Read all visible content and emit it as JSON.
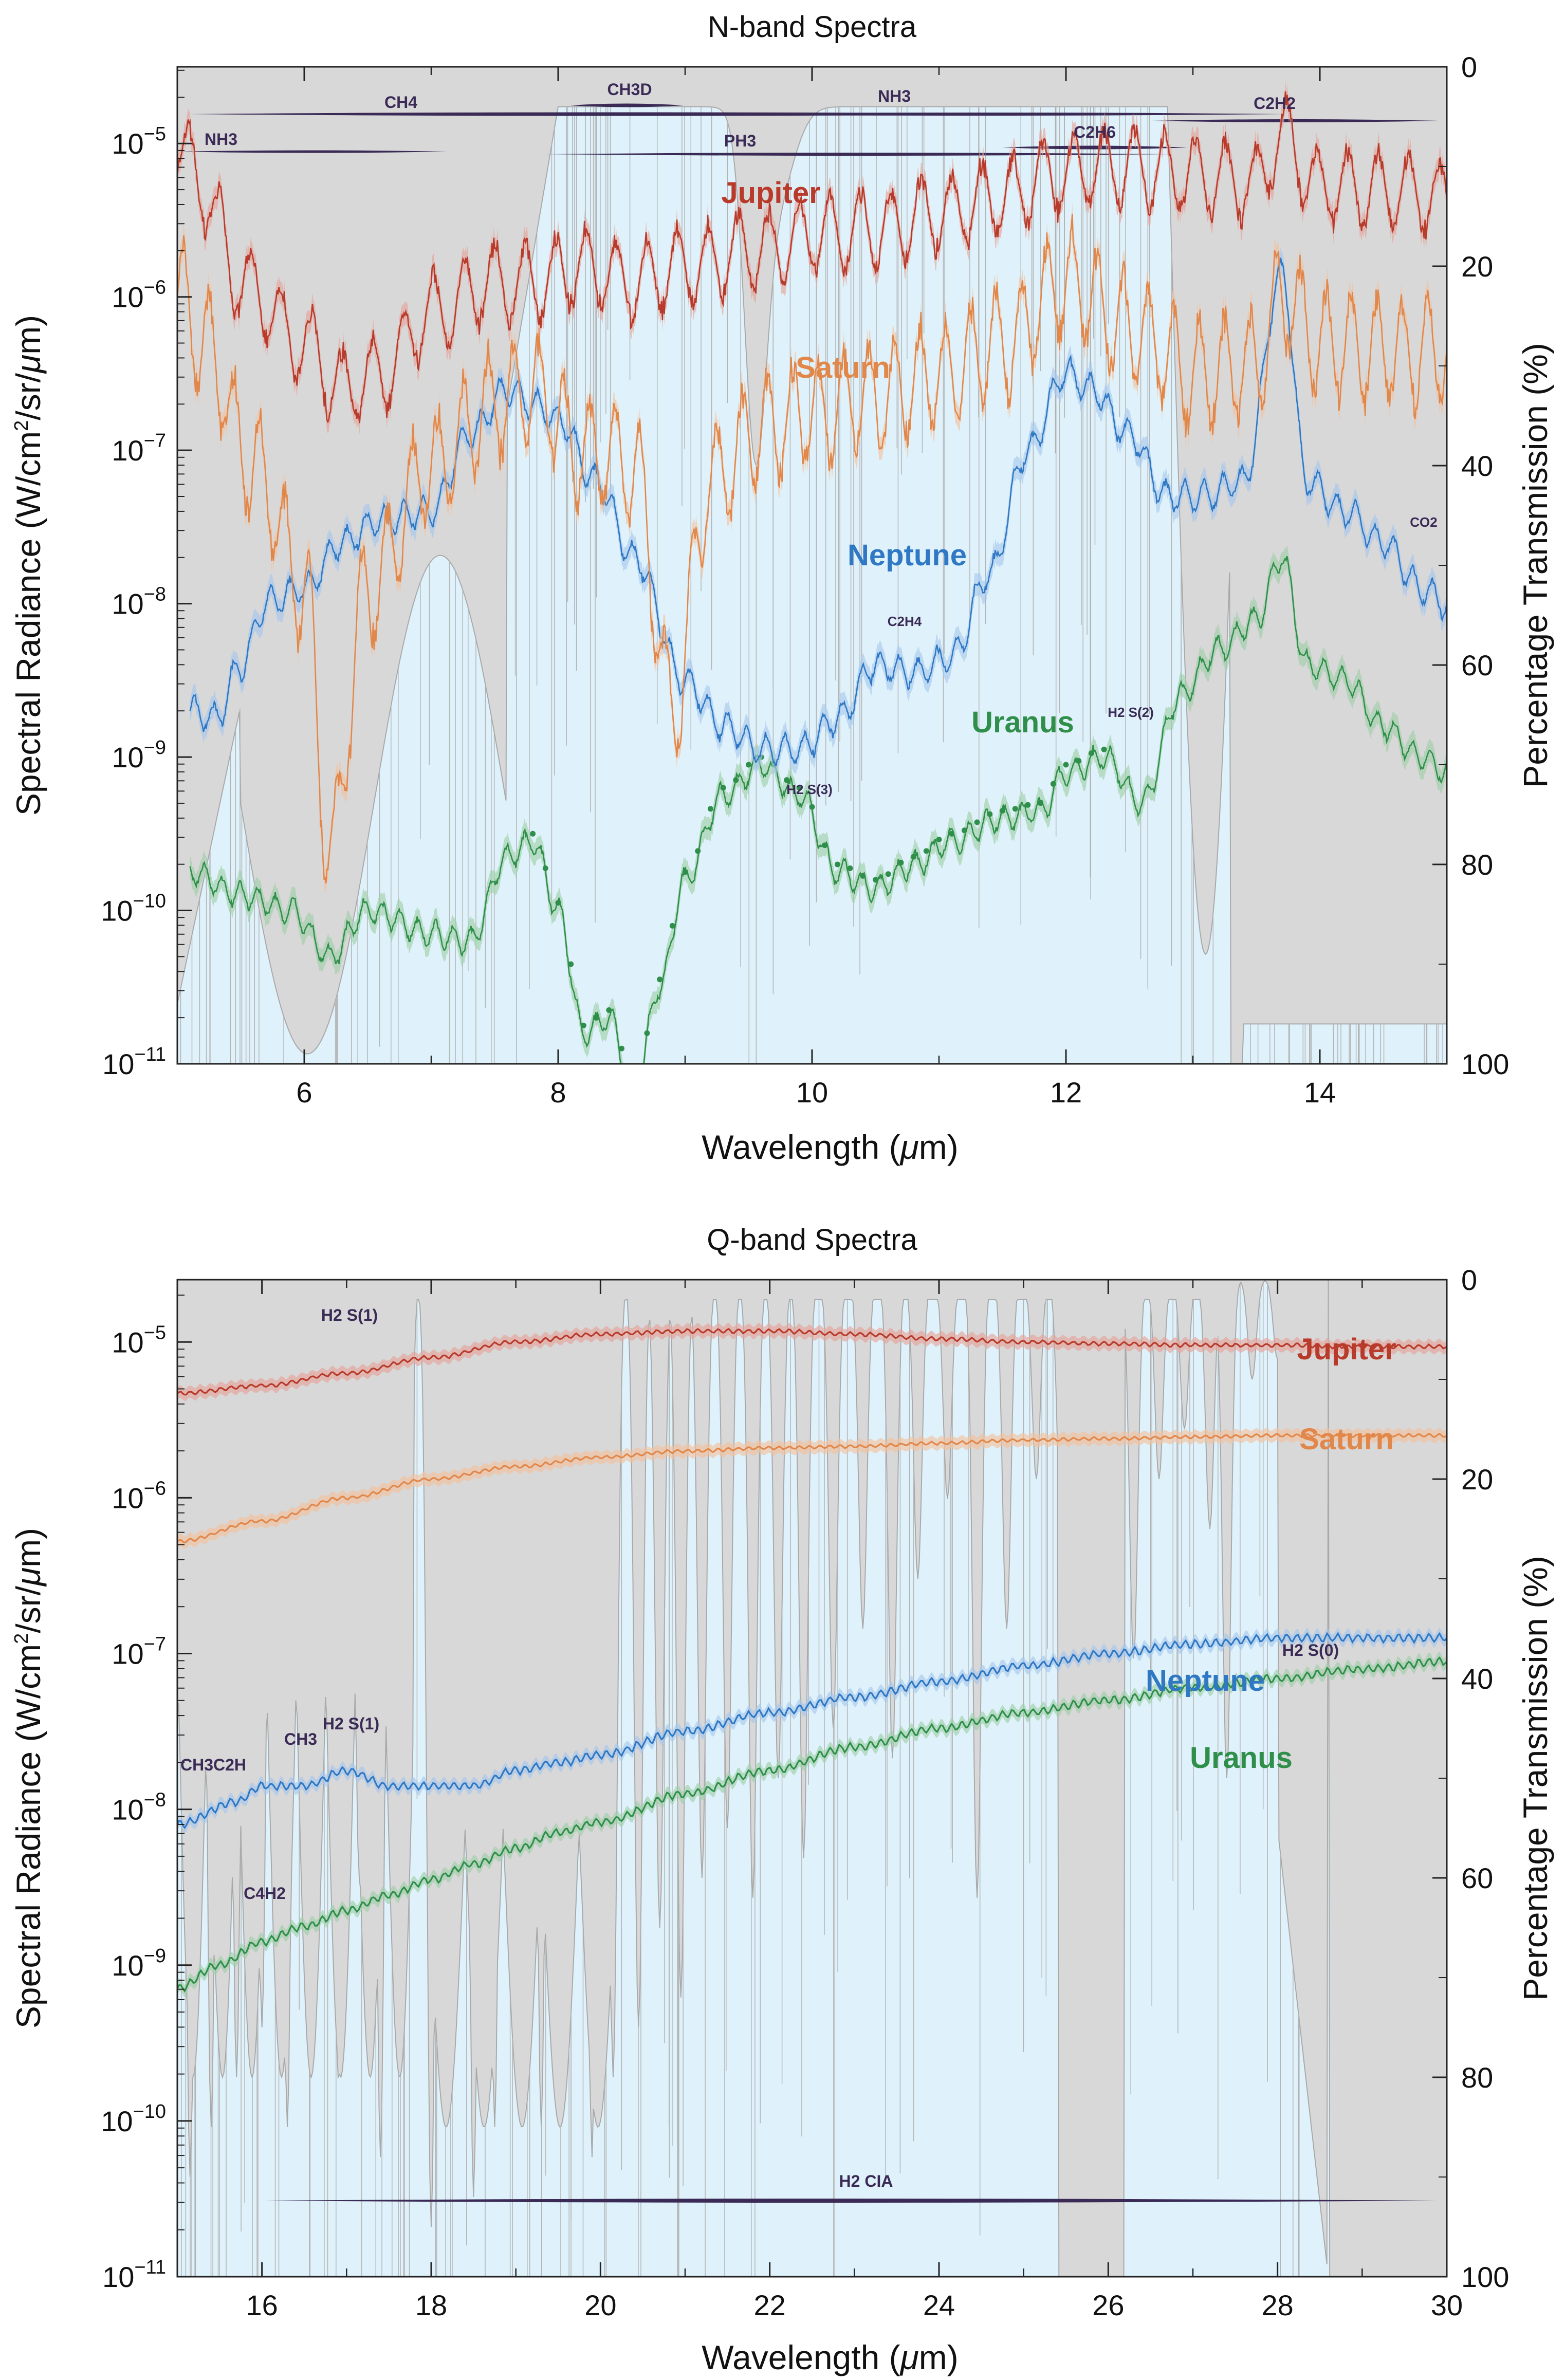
{
  "chart_data": [
    {
      "type": "line",
      "title": "N-band Spectra",
      "xlabel": "Wavelength (μm)",
      "ylabel": "Spectral Radiance (W/cm²/sr/μm)",
      "y2label": "Percentage Transmission (%)",
      "xlim": [
        5,
        15
      ],
      "ylim_log10": [
        -11,
        -4.5
      ],
      "y2lim": [
        100,
        0
      ],
      "x_ticks": [
        "6",
        "8",
        "10",
        "12",
        "14"
      ],
      "y_ticks": [
        "10-5",
        "10-6",
        "10-7",
        "10-8",
        "10-9",
        "10-10",
        "10-11"
      ],
      "y2_ticks": [
        "0",
        "20",
        "40",
        "60",
        "80",
        "100"
      ],
      "planet_colors": {
        "Jupiter": "#b83a2a",
        "Saturn": "#e2874a",
        "Neptune": "#2f78c4",
        "Uranus": "#2f8f4a"
      },
      "series": [
        {
          "name": "Jupiter",
          "x": [
            5.0,
            5.2,
            5.5,
            6.0,
            6.3,
            6.6,
            7.0,
            7.5,
            7.8,
            8.2,
            8.6,
            9.0,
            9.5,
            10.0,
            10.5,
            11.0,
            11.5,
            11.9,
            12.5,
            13.0,
            13.5,
            13.7,
            14.0,
            14.5,
            15.0
          ],
          "log10": [
            -5.0,
            -5.3,
            -5.9,
            -6.3,
            -6.6,
            -6.5,
            -6.1,
            -5.9,
            -5.9,
            -5.8,
            -5.9,
            -5.8,
            -5.7,
            -5.6,
            -5.55,
            -5.45,
            -5.35,
            -5.2,
            -5.15,
            -5.2,
            -5.25,
            -4.95,
            -5.28,
            -5.3,
            -5.35
          ]
        },
        {
          "name": "Saturn",
          "x": [
            5.0,
            5.2,
            5.6,
            6.0,
            6.2,
            6.5,
            7.0,
            7.5,
            7.8,
            8.2,
            8.6,
            8.9,
            9.2,
            9.6,
            10.0,
            10.5,
            11.0,
            11.5,
            12.0,
            12.5,
            13.0,
            13.5,
            13.7,
            14.0,
            14.5,
            15.0
          ],
          "log10": [
            -6.0,
            -6.3,
            -7.1,
            -7.9,
            -9.6,
            -7.9,
            -7.1,
            -6.7,
            -6.6,
            -7.0,
            -7.1,
            -8.7,
            -7.2,
            -6.85,
            -6.75,
            -6.65,
            -6.5,
            -6.3,
            -5.9,
            -6.2,
            -6.5,
            -6.45,
            -6.0,
            -6.3,
            -6.35,
            -6.35
          ]
        },
        {
          "name": "Neptune",
          "x": [
            5.1,
            5.3,
            5.5,
            5.7,
            6.0,
            6.3,
            6.6,
            7.0,
            7.3,
            7.6,
            7.8,
            8.0,
            8.3,
            8.6,
            9.0,
            9.3,
            9.6,
            9.9,
            10.2,
            10.5,
            10.8,
            11.1,
            11.4,
            11.7,
            12.0,
            12.2,
            12.5,
            12.8,
            13.1,
            13.4,
            13.7,
            13.9,
            14.2,
            14.5,
            14.8,
            15.0
          ],
          "log10": [
            -8.7,
            -8.75,
            -8.4,
            -8.0,
            -7.9,
            -7.6,
            -7.45,
            -7.4,
            -6.9,
            -6.6,
            -6.7,
            -6.8,
            -7.2,
            -7.7,
            -8.5,
            -8.8,
            -8.95,
            -8.95,
            -8.75,
            -8.4,
            -8.45,
            -8.35,
            -7.8,
            -7.0,
            -6.5,
            -6.6,
            -6.9,
            -7.3,
            -7.3,
            -7.2,
            -5.85,
            -7.2,
            -7.4,
            -7.6,
            -7.9,
            -8.0
          ]
        },
        {
          "name": "Uranus",
          "x": [
            5.1,
            5.5,
            5.9,
            6.2,
            6.5,
            7.0,
            7.3,
            7.6,
            7.8,
            8.0,
            8.2,
            8.4,
            8.6,
            8.8,
            9.0,
            9.3,
            9.6,
            9.9,
            10.2,
            10.5,
            10.8,
            11.1,
            11.5,
            11.8,
            12.0,
            12.3,
            12.6,
            12.9,
            13.2,
            13.5,
            13.7,
            13.9,
            14.2,
            14.5,
            14.8,
            15.0
          ],
          "log10": [
            -9.75,
            -9.9,
            -10.0,
            -10.3,
            -10.0,
            -10.15,
            -10.2,
            -9.65,
            -9.55,
            -10.0,
            -10.8,
            -10.7,
            -11.2,
            -10.5,
            -9.8,
            -9.25,
            -9.05,
            -9.25,
            -9.75,
            -9.85,
            -9.7,
            -9.55,
            -9.4,
            -9.35,
            -9.1,
            -9.0,
            -9.3,
            -8.6,
            -8.3,
            -8.1,
            -7.7,
            -8.4,
            -8.5,
            -8.8,
            -9.0,
            -9.1
          ]
        }
      ],
      "planet_labels": [
        "Jupiter",
        "Saturn",
        "Neptune",
        "Uranus"
      ],
      "molecule_labels": {
        "nh3_left": "NH3",
        "ch4": "CH4",
        "ch3d": "CH3D",
        "nh3": "NH3",
        "ph3": "PH3",
        "c2h6": "C2H6",
        "c2h2": "C2H2",
        "c2h4": "C2H4",
        "h2s3": "H2 S(3)",
        "h2s2": "H2 S(2)",
        "co2": "CO2"
      }
    },
    {
      "type": "line",
      "title": "Q-band Spectra",
      "xlabel": "Wavelength (μm)",
      "ylabel": "Spectral Radiance (W/cm²/sr/μm)",
      "y2label": "Percentage Transmission (%)",
      "xlim": [
        15,
        30
      ],
      "ylim_log10": [
        -11,
        -4.6
      ],
      "y2lim": [
        100,
        0
      ],
      "x_ticks": [
        "16",
        "18",
        "20",
        "22",
        "24",
        "26",
        "28",
        "30"
      ],
      "y_ticks": [
        "10-5",
        "10-6",
        "10-7",
        "10-8",
        "10-9",
        "10-10",
        "10-11"
      ],
      "y2_ticks": [
        "0",
        "20",
        "40",
        "60",
        "80",
        "100"
      ],
      "series": [
        {
          "name": "Jupiter",
          "x": [
            15,
            16,
            17,
            18,
            19,
            20,
            21,
            22,
            23,
            24,
            25,
            26,
            27,
            28,
            29,
            30
          ],
          "log10": [
            -5.33,
            -5.28,
            -5.2,
            -5.1,
            -5.0,
            -4.95,
            -4.93,
            -4.93,
            -4.95,
            -4.98,
            -5.0,
            -5.01,
            -5.02,
            -5.02,
            -5.03,
            -5.03
          ]
        },
        {
          "name": "Saturn",
          "x": [
            15,
            16,
            17,
            18,
            19,
            20,
            21,
            22,
            23,
            24,
            25,
            26,
            27,
            28,
            29,
            30
          ],
          "log10": [
            -6.28,
            -6.15,
            -6.0,
            -5.88,
            -5.8,
            -5.74,
            -5.7,
            -5.68,
            -5.67,
            -5.65,
            -5.63,
            -5.62,
            -5.61,
            -5.6,
            -5.6,
            -5.6
          ]
        },
        {
          "name": "Neptune",
          "x": [
            15,
            15.7,
            16,
            16.5,
            17,
            17.5,
            18,
            18.5,
            19,
            19.5,
            20,
            21,
            22,
            23,
            24,
            25,
            26,
            27,
            28,
            29,
            30
          ],
          "log10": [
            -8.1,
            -7.95,
            -7.85,
            -7.85,
            -7.75,
            -7.85,
            -7.85,
            -7.85,
            -7.75,
            -7.7,
            -7.65,
            -7.5,
            -7.38,
            -7.28,
            -7.18,
            -7.08,
            -7.0,
            -6.94,
            -6.9,
            -6.9,
            -6.9
          ]
        },
        {
          "name": "Uranus",
          "x": [
            15,
            15.5,
            16,
            16.5,
            17,
            17.5,
            18,
            18.5,
            19,
            19.5,
            20,
            21,
            22,
            23,
            24,
            25,
            26,
            27,
            28,
            29,
            30
          ],
          "log10": [
            -9.15,
            -9.0,
            -8.85,
            -8.75,
            -8.65,
            -8.55,
            -8.45,
            -8.35,
            -8.25,
            -8.15,
            -8.08,
            -7.9,
            -7.75,
            -7.6,
            -7.48,
            -7.38,
            -7.3,
            -7.22,
            -7.16,
            -7.1,
            -7.05
          ]
        }
      ],
      "planet_labels": [
        "Jupiter",
        "Saturn",
        "Neptune",
        "Uranus"
      ],
      "molecule_labels": {
        "h2s1_top": "H2 S(1)",
        "h2s1": "H2 S(1)",
        "ch3c2h": "CH3C2H",
        "ch3": "CH3",
        "c4h2": "C4H2",
        "h2s0": "H2 S(0)",
        "h2cia": "H2 CIA"
      }
    }
  ]
}
